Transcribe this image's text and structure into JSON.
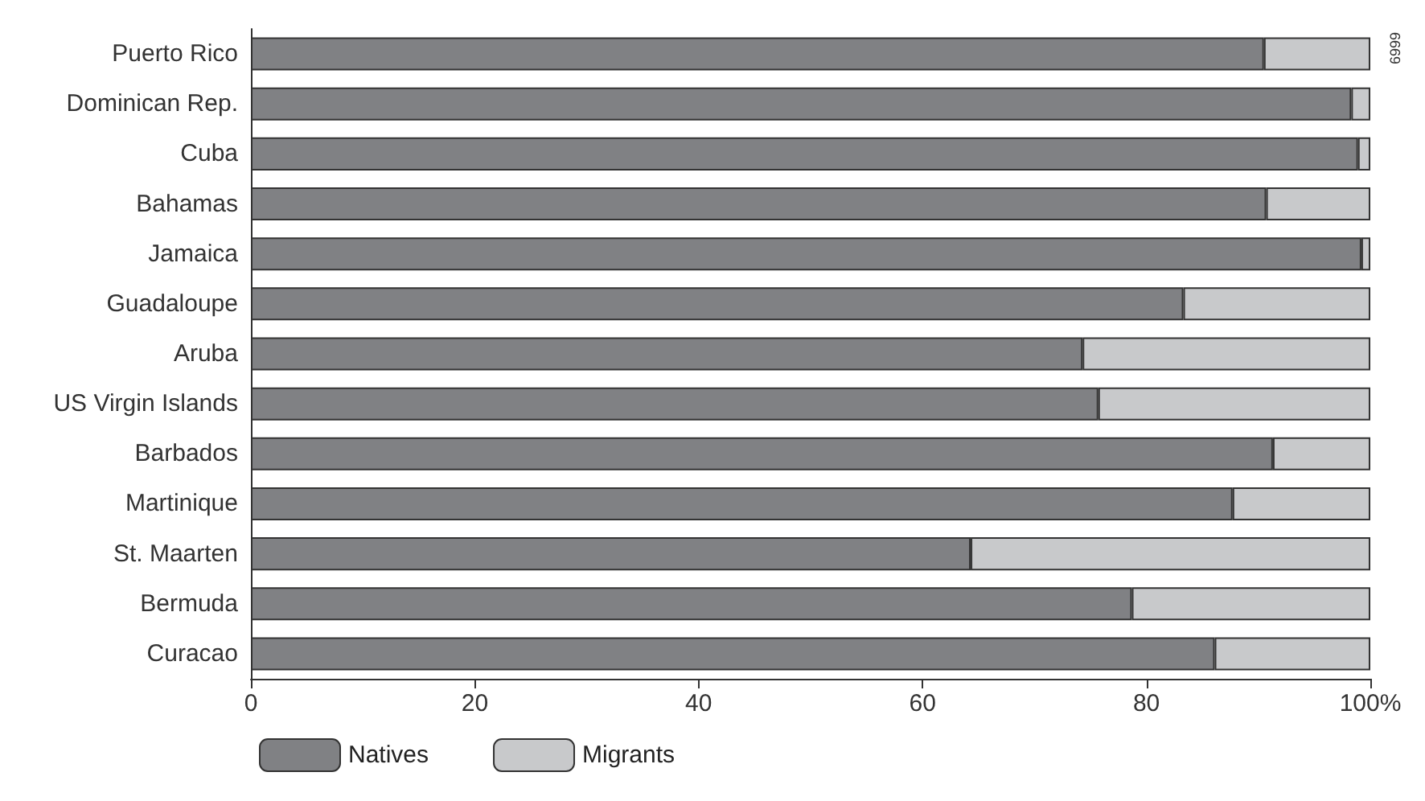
{
  "chart_data": {
    "type": "bar",
    "orientation": "horizontal",
    "stacked": true,
    "categories": [
      "Puerto Rico",
      "Dominican Rep.",
      "Cuba",
      "Bahamas",
      "Jamaica",
      "Guadaloupe",
      "Aruba",
      "US Virgin Islands",
      "Barbados",
      "Martinique",
      "St. Maarten",
      "Bermuda",
      "Curacao"
    ],
    "series": [
      {
        "name": "Natives",
        "color": "#808184",
        "values": [
          90.5,
          98.3,
          98.9,
          90.7,
          99.2,
          83.3,
          74.3,
          75.7,
          91.3,
          87.7,
          64.3,
          78.7,
          86.1
        ]
      },
      {
        "name": "Migrants",
        "color": "#c8c9cb",
        "values": [
          9.5,
          1.7,
          1.1,
          9.3,
          0.8,
          16.7,
          25.7,
          24.3,
          8.7,
          12.3,
          35.7,
          21.3,
          13.9
        ]
      }
    ],
    "xlim": [
      0,
      100
    ],
    "xticks": [
      0,
      20,
      40,
      60,
      80,
      {
        "value": 100,
        "label": "100%"
      }
    ],
    "grid": false,
    "legend": "bottom left",
    "annotations": [
      "6999"
    ]
  }
}
